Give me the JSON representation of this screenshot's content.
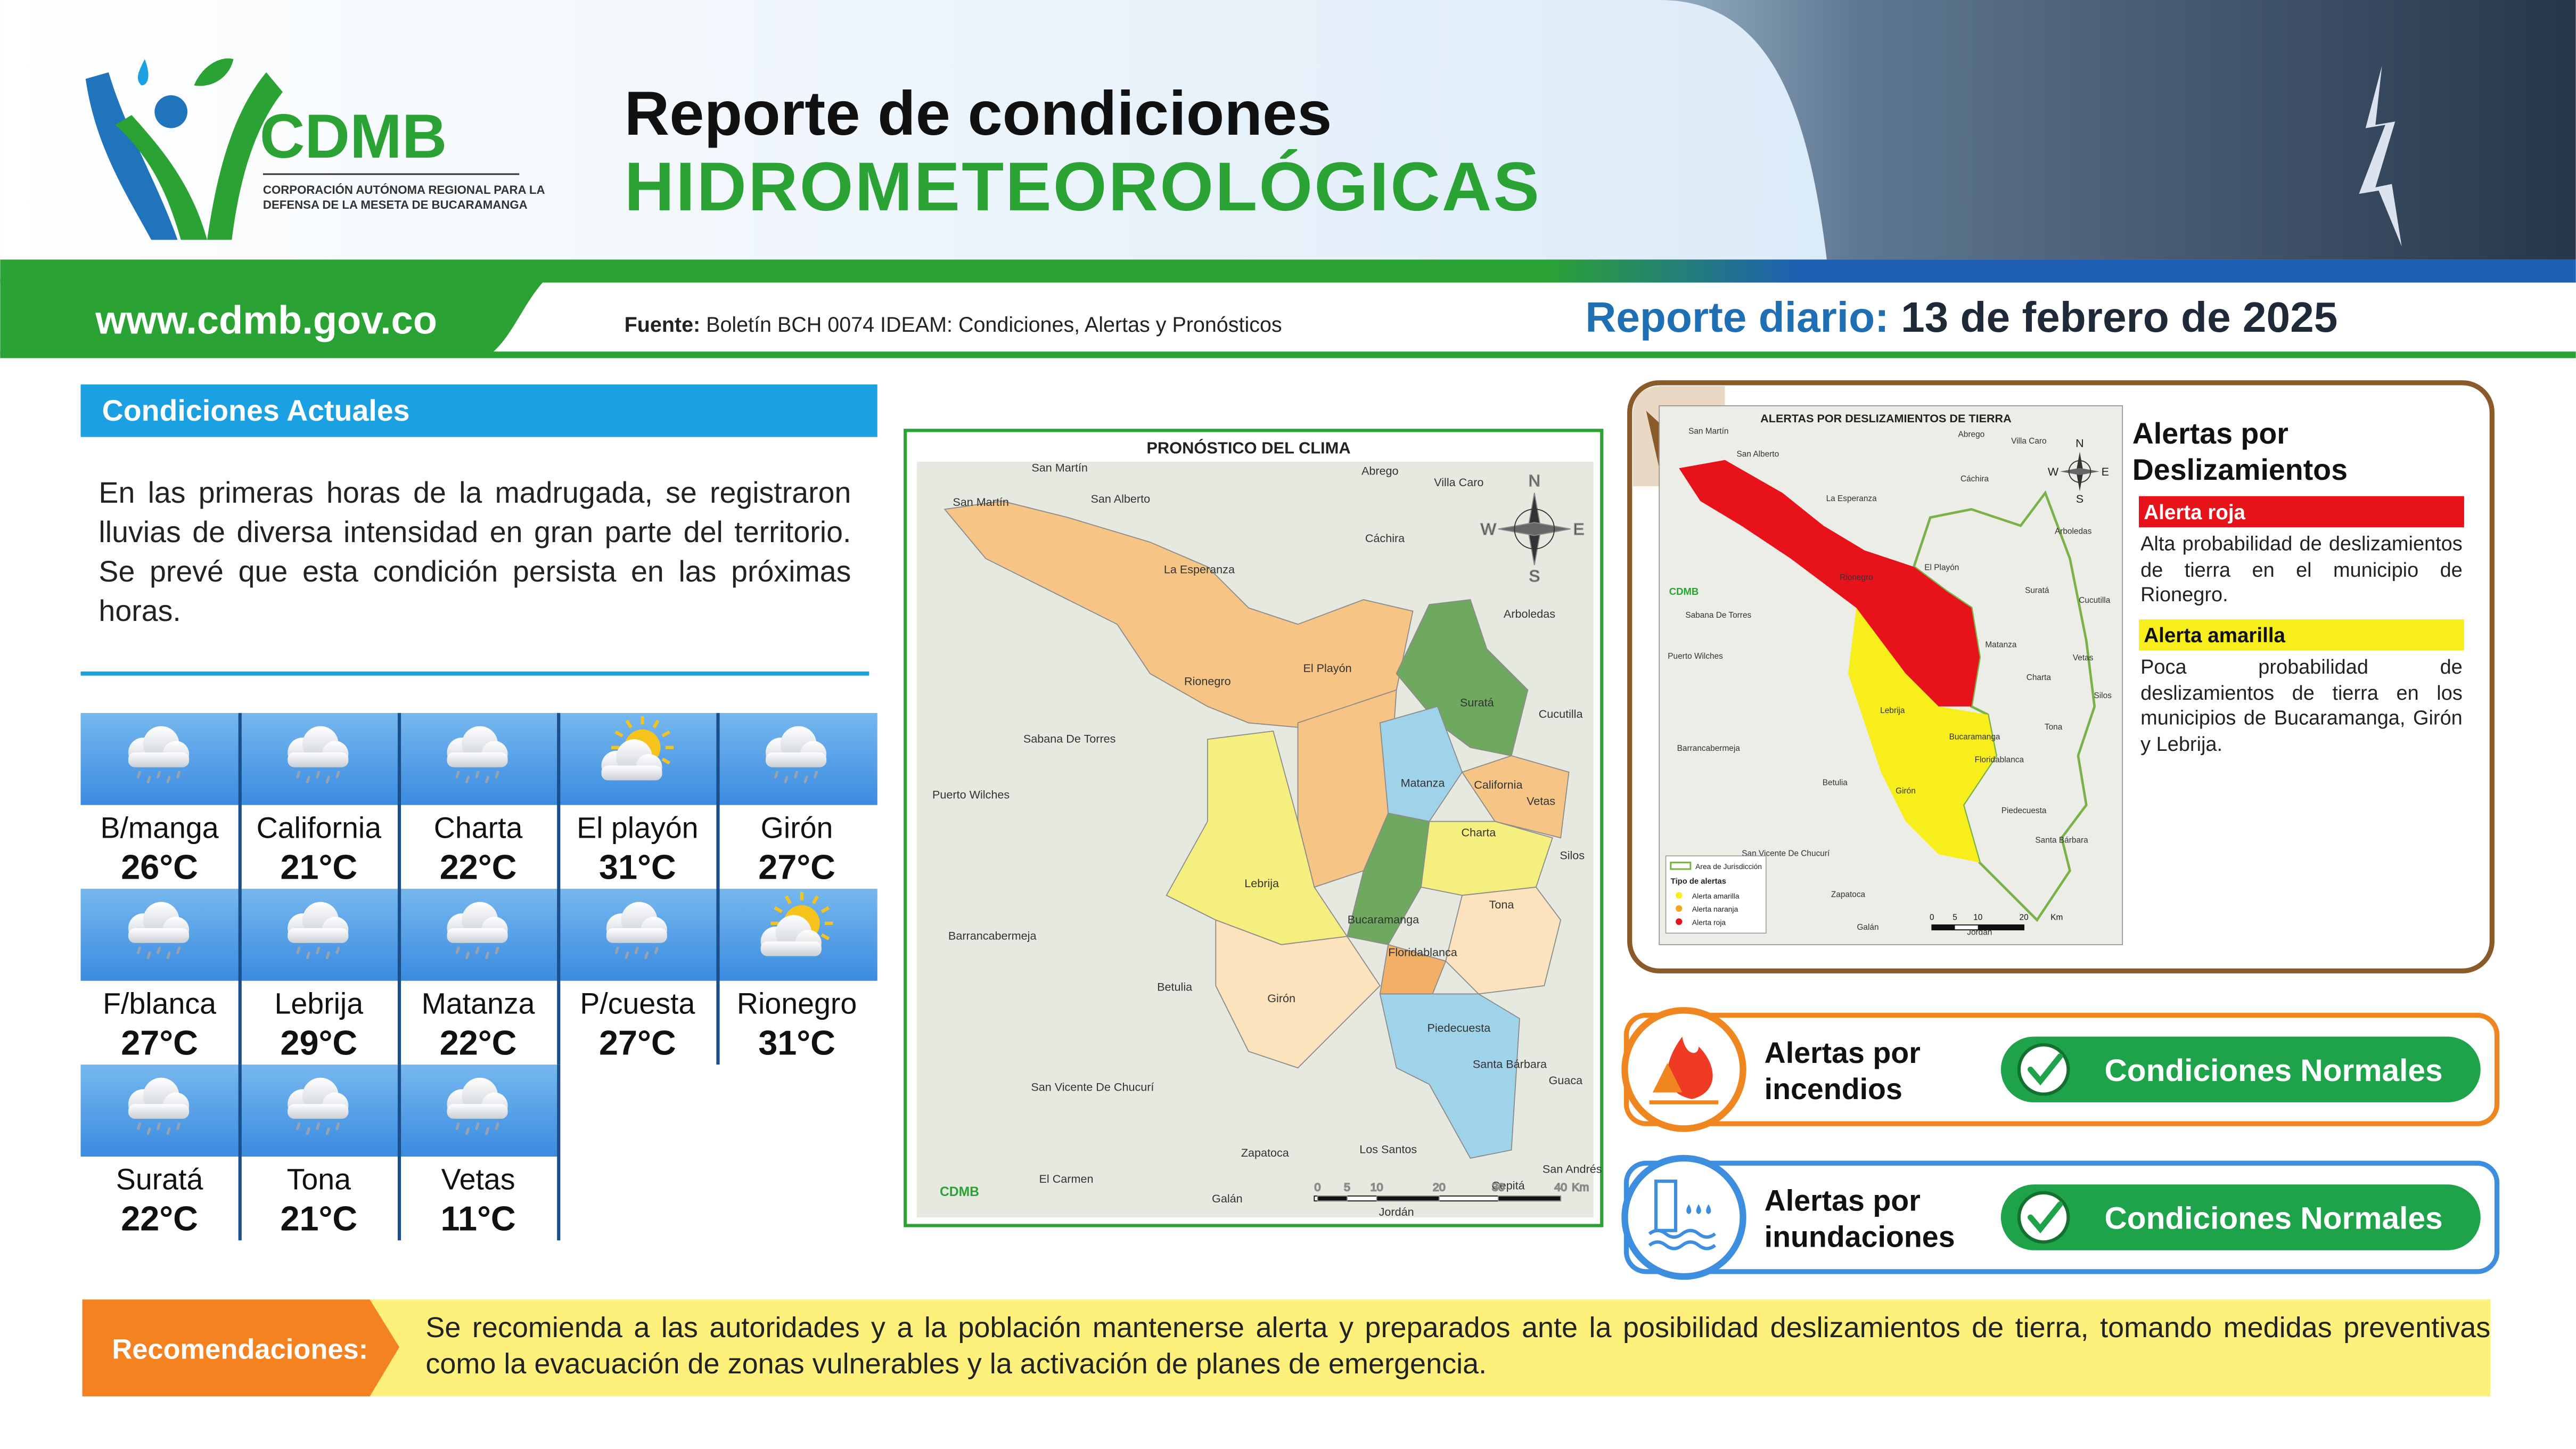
{
  "header": {
    "org": "CDMB",
    "org_full": [
      "CORPORACIÓN AUTÓNOMA REGIONAL PARA LA",
      "DEFENSA DE LA MESETA DE BUCARAMANGA"
    ],
    "title_line1": "Reporte de condiciones",
    "title_line2": "HIDROMETEOROLÓGICAS",
    "website": "www.cdmb.gov.co",
    "source_label": "Fuente:",
    "source": "Boletín BCH 0074 IDEAM: Condiciones, Alertas y Pronósticos",
    "report_label": "Reporte diario:",
    "report_date": "13 de febrero de 2025"
  },
  "conditions": {
    "title": "Condiciones Actuales",
    "text": "En las primeras horas de la madrugada, se registraron lluvias de diversa intensidad en gran parte del territorio. Se prevé que esta condición persista en las próximas horas."
  },
  "forecast": [
    {
      "city": "B/manga",
      "temp": "26°C",
      "icon": "rain"
    },
    {
      "city": "California",
      "temp": "21°C",
      "icon": "rain"
    },
    {
      "city": "Charta",
      "temp": "22°C",
      "icon": "rain"
    },
    {
      "city": "El playón",
      "temp": "31°C",
      "icon": "sun"
    },
    {
      "city": "Girón",
      "temp": "27°C",
      "icon": "rain"
    },
    {
      "city": "F/blanca",
      "temp": "27°C",
      "icon": "rain"
    },
    {
      "city": "Lebrija",
      "temp": "29°C",
      "icon": "rain"
    },
    {
      "city": "Matanza",
      "temp": "22°C",
      "icon": "rain"
    },
    {
      "city": "P/cuesta",
      "temp": "27°C",
      "icon": "rain"
    },
    {
      "city": "Rionegro",
      "temp": "31°C",
      "icon": "sun"
    },
    {
      "city": "Suratá",
      "temp": "22°C",
      "icon": "rain"
    },
    {
      "city": "Tona",
      "temp": "21°C",
      "icon": "rain"
    },
    {
      "city": "Vetas",
      "temp": "11°C",
      "icon": "rain"
    }
  ],
  "climate_map": {
    "title": "PRONÓSTICO DEL CLIMA",
    "places": [
      "San Martín",
      "Abrego",
      "San Martín",
      "San Alberto",
      "Villa Caro",
      "Cáchira",
      "La Esperanza",
      "Arboledas",
      "Rionegro",
      "El Playón",
      "Suratá",
      "Cucutilla",
      "Sabana De Torres",
      "Matanza",
      "California",
      "Vetas",
      "Puerto Wilches",
      "Charta",
      "Silos",
      "Lebrija",
      "Tona",
      "Barrancabermeja",
      "Bucaramanga",
      "Floridablanca",
      "Betulia",
      "Girón",
      "Piedecuesta",
      "Santa Bárbara",
      "Guaca",
      "San Vicente De Chucurí",
      "Los Santos",
      "Zapatoca",
      "San Andrés",
      "El Carmen",
      "Galán",
      "Jordán",
      "Cepitá"
    ],
    "compass": [
      "N",
      "E",
      "S",
      "W"
    ],
    "scale": [
      "0",
      "5",
      "10",
      "20",
      "30",
      "40",
      "Km"
    ]
  },
  "landslide_map": {
    "title": "ALERTAS POR DESLIZAMIENTOS DE TIERRA",
    "places": [
      "San Martín",
      "San Alberto",
      "Abrego",
      "Villa Caro",
      "Cáchira",
      "La Esperanza",
      "Rionegro",
      "El Playón",
      "Sabana De Torres",
      "Puerto Wilches",
      "Arboledas",
      "Cucutilla",
      "Suratá",
      "Matanza",
      "Charta",
      "Vetas",
      "Silos",
      "Tona",
      "Lebrija",
      "Bucaramanga",
      "Floridablanca",
      "Betulia",
      "Girón",
      "Piedecuesta",
      "Barrancabermeja",
      "San Vicente De Chucurí",
      "Zapatoca",
      "Galán",
      "Jordán",
      "Santa Bárbara"
    ],
    "legend": {
      "area": "Area de Jurisdicción",
      "types_title": "Tipo de alertas",
      "types": [
        "Alerta amarilla",
        "Alerta naranja",
        "Alerta roja"
      ]
    },
    "compass": [
      "N",
      "E",
      "S",
      "W"
    ],
    "scale": [
      "0",
      "5",
      "10",
      "20",
      "Km"
    ]
  },
  "landslide_alerts": {
    "title": "Alertas por Deslizamientos",
    "items": [
      {
        "level": "Alerta roja",
        "text": "Alta probabilidad de deslizamientos de tierra en el municipio de Rionegro."
      },
      {
        "level": "Alerta amarilla",
        "text": "Poca probabilidad de deslizamientos de tierra en los municipios de Bucaramanga, Girón y Lebrija."
      }
    ]
  },
  "alerts": [
    {
      "title": "Alertas por incendios",
      "status": "Condiciones Normales"
    },
    {
      "title": "Alertas por inundaciones",
      "status": "Condiciones Normales"
    }
  ],
  "recommendations": {
    "label": "Recomendaciones:",
    "text": "Se recomienda a las autoridades y a la población mantenerse alerta y preparados ante la posibilidad deslizamientos de tierra, tomando medidas preventivas como la evacuación de zonas vulnerables y la activación de planes de emergencia."
  }
}
